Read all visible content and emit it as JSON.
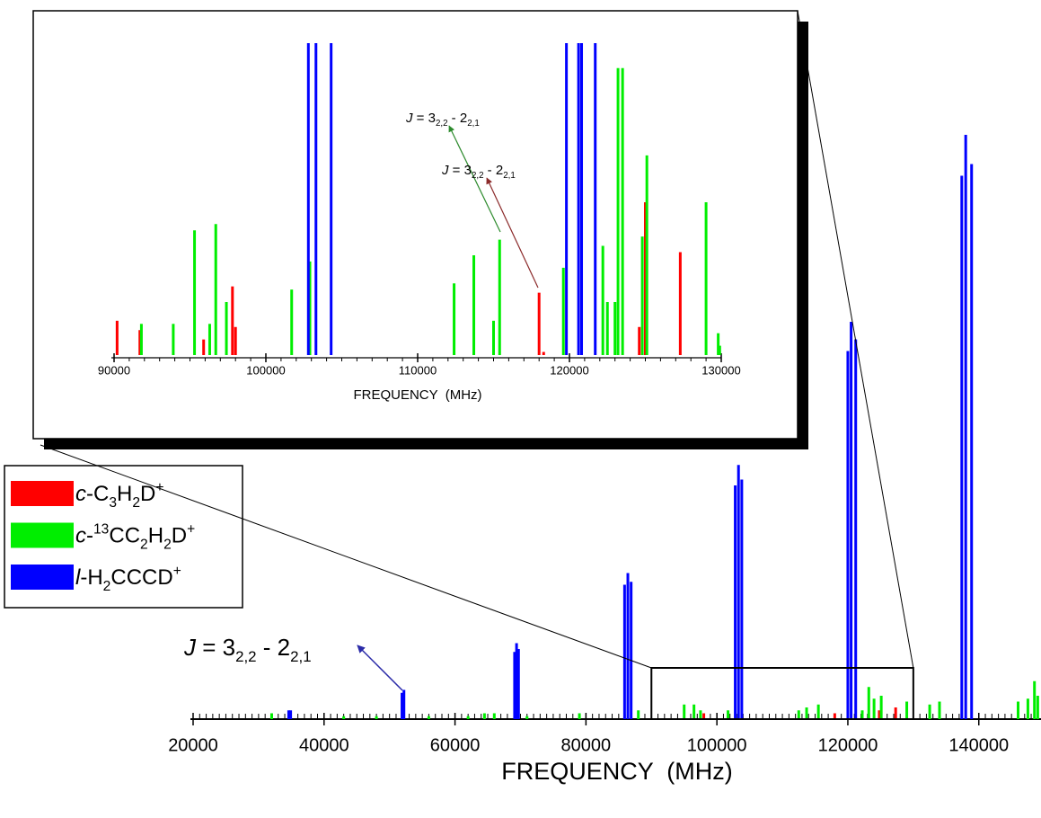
{
  "chart_data": [
    {
      "type": "stick",
      "xlabel": "FREQUENCY  (MHz)",
      "xlim": [
        20000,
        149500
      ],
      "xticks": [
        20000,
        40000,
        60000,
        80000,
        100000,
        120000,
        140000
      ],
      "xminor": 1000,
      "ylim": [
        0,
        100
      ],
      "series": [
        {
          "name": "c-C3H2D+",
          "color": "#ff0000",
          "x": [
            98000,
            118000,
            124800,
            127300
          ],
          "values": [
            1,
            1,
            1.5,
            2
          ]
        },
        {
          "name": "c-13CC2H2D+",
          "color": "#00ee00",
          "x": [
            32000,
            43000,
            48000,
            56000,
            62000,
            64500,
            66000,
            71000,
            79000,
            88000,
            95000,
            96500,
            97500,
            101700,
            112500,
            113700,
            115500,
            122200,
            123200,
            124000,
            125100,
            129000,
            132500,
            134000,
            146000,
            147500,
            148500,
            149000
          ],
          "values": [
            1,
            0.5,
            0.5,
            0.5,
            0.5,
            1,
            1,
            0.5,
            1,
            1.5,
            2.5,
            2.5,
            1.5,
            1.5,
            1.5,
            2,
            2.5,
            1.5,
            5.5,
            3.5,
            4,
            3,
            2.5,
            3,
            3,
            3.5,
            6.5,
            4
          ]
        },
        {
          "name": "l-H2CCCD+",
          "color": "#0000ff",
          "x": [
            34600,
            34900,
            51900,
            52200,
            69100,
            69400,
            69700,
            85900,
            86400,
            86900,
            102800,
            103300,
            103800,
            120000,
            120500,
            121200,
            137400,
            138000,
            138900
          ],
          "values": [
            1.5,
            1.5,
            4.5,
            5,
            11.5,
            13,
            12,
            23,
            25,
            23.5,
            40,
            43.5,
            41,
            63,
            68,
            65,
            93,
            100,
            95
          ]
        }
      ],
      "annotations": [
        {
          "text": "J = 32,2 - 22,1",
          "color": "#2b2ba8"
        }
      ]
    },
    {
      "type": "stick",
      "xlabel": "FREQUENCY  (MHz)",
      "xlim": [
        90000,
        130000
      ],
      "xticks": [
        90000,
        100000,
        110000,
        120000,
        130000
      ],
      "xminor": 1000,
      "ylim": [
        0,
        100
      ],
      "series": [
        {
          "color": "#ff0000",
          "x": [
            90200,
            91700,
            95900,
            97800,
            98000,
            118000,
            118300,
            124600,
            125000,
            127300
          ],
          "values": [
            11,
            8,
            5,
            22,
            9,
            20,
            1,
            9,
            49,
            33
          ]
        },
        {
          "color": "#00ee00",
          "x": [
            91800,
            93900,
            95300,
            96300,
            96700,
            97400,
            101700,
            102900,
            112400,
            113700,
            115000,
            115400,
            119600,
            122200,
            122500,
            123000,
            123200,
            123500,
            124800,
            125100,
            129000,
            129800,
            129900
          ],
          "values": [
            10,
            10,
            40,
            10,
            42,
            17,
            21,
            30,
            23,
            32,
            11,
            37,
            28,
            35,
            17,
            17,
            92,
            92,
            38,
            64,
            49,
            7,
            3
          ]
        },
        {
          "color": "#0000ff",
          "x": [
            102800,
            103300,
            104300,
            119800,
            120600,
            120800,
            121700
          ],
          "values": [
            100,
            100,
            100,
            100,
            100,
            100,
            100
          ]
        }
      ],
      "annotations": [
        {
          "text": "J = 32,2 - 22,1",
          "color": "#2e8b2e"
        },
        {
          "text": "J = 32,2 - 22,1",
          "color": "#8b2a2a"
        }
      ]
    }
  ]
}
